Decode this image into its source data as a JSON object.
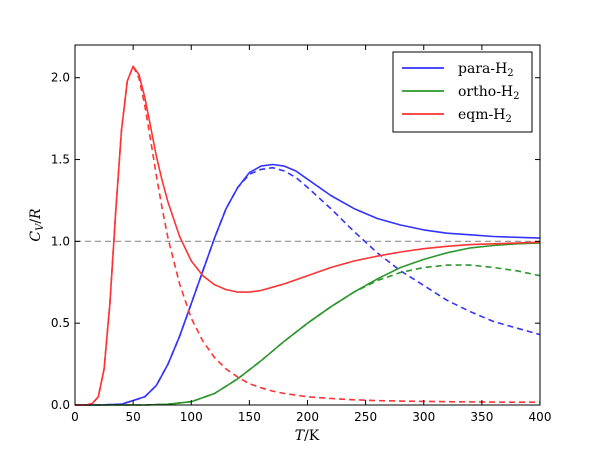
{
  "chart_data": {
    "type": "line",
    "xlabel": "T/K",
    "ylabel": "C_V/R",
    "xlim": [
      0,
      400
    ],
    "ylim": [
      0,
      2.2
    ],
    "xticks": [
      "0",
      "50",
      "100",
      "150",
      "200",
      "250",
      "300",
      "350",
      "400"
    ],
    "yticks": [
      "0.0",
      "0.5",
      "1.0",
      "1.5",
      "2.0"
    ],
    "grid": false,
    "legend": {
      "placement": "top-right",
      "entries": [
        {
          "label": "para-H",
          "sub": "2",
          "color": "#3333ff"
        },
        {
          "label": "ortho-H",
          "sub": "2",
          "color": "#2e962e"
        },
        {
          "label": "eqm-H",
          "sub": "2",
          "color": "#ff3333"
        }
      ]
    },
    "reference_line": {
      "y": 1.0,
      "style": "dashed",
      "color": "#999999"
    },
    "series": [
      {
        "name": "para-H2",
        "style": "solid",
        "color": "#3333ff",
        "x": [
          0,
          20,
          40,
          60,
          70,
          80,
          90,
          100,
          110,
          120,
          130,
          140,
          150,
          160,
          170,
          180,
          190,
          200,
          220,
          240,
          260,
          280,
          300,
          320,
          340,
          360,
          380,
          400
        ],
        "y": [
          0,
          0,
          0.005,
          0.05,
          0.12,
          0.25,
          0.42,
          0.62,
          0.82,
          1.02,
          1.2,
          1.33,
          1.42,
          1.46,
          1.47,
          1.46,
          1.43,
          1.38,
          1.28,
          1.2,
          1.14,
          1.1,
          1.07,
          1.05,
          1.04,
          1.03,
          1.025,
          1.02
        ]
      },
      {
        "name": "para-H2 (dashed)",
        "style": "dashed",
        "color": "#3333ff",
        "x": [
          0,
          20,
          40,
          60,
          70,
          80,
          90,
          100,
          110,
          120,
          130,
          140,
          150,
          160,
          170,
          180,
          190,
          200,
          220,
          240,
          260,
          280,
          300,
          320,
          340,
          360,
          380,
          400
        ],
        "y": [
          0,
          0,
          0.005,
          0.05,
          0.12,
          0.25,
          0.42,
          0.62,
          0.82,
          1.02,
          1.2,
          1.33,
          1.41,
          1.44,
          1.45,
          1.43,
          1.39,
          1.33,
          1.2,
          1.06,
          0.93,
          0.82,
          0.73,
          0.64,
          0.57,
          0.51,
          0.47,
          0.43
        ]
      },
      {
        "name": "ortho-H2",
        "style": "solid",
        "color": "#2e962e",
        "x": [
          0,
          60,
          80,
          100,
          120,
          140,
          160,
          180,
          200,
          220,
          240,
          260,
          280,
          300,
          320,
          340,
          360,
          380,
          400
        ],
        "y": [
          0,
          0,
          0.005,
          0.02,
          0.07,
          0.16,
          0.27,
          0.39,
          0.5,
          0.6,
          0.69,
          0.77,
          0.84,
          0.89,
          0.93,
          0.96,
          0.975,
          0.985,
          0.99
        ]
      },
      {
        "name": "ortho-H2 (dashed)",
        "style": "dashed",
        "color": "#2e962e",
        "x": [
          0,
          60,
          80,
          100,
          120,
          140,
          160,
          180,
          200,
          220,
          240,
          260,
          280,
          300,
          320,
          340,
          360,
          380,
          400
        ],
        "y": [
          0,
          0,
          0.005,
          0.02,
          0.07,
          0.16,
          0.27,
          0.39,
          0.5,
          0.6,
          0.69,
          0.76,
          0.81,
          0.84,
          0.855,
          0.855,
          0.84,
          0.82,
          0.79
        ]
      },
      {
        "name": "eqm-H2",
        "style": "solid",
        "color": "#ff3333",
        "x": [
          0,
          10,
          15,
          20,
          25,
          30,
          35,
          40,
          45,
          50,
          55,
          60,
          65,
          70,
          75,
          80,
          90,
          100,
          110,
          120,
          130,
          140,
          150,
          160,
          170,
          180,
          200,
          220,
          240,
          260,
          280,
          300,
          320,
          340,
          360,
          380,
          400
        ],
        "y": [
          0,
          0,
          0.01,
          0.05,
          0.22,
          0.62,
          1.18,
          1.68,
          1.98,
          2.07,
          2.02,
          1.88,
          1.7,
          1.52,
          1.37,
          1.24,
          1.03,
          0.88,
          0.79,
          0.735,
          0.705,
          0.69,
          0.69,
          0.7,
          0.72,
          0.74,
          0.79,
          0.84,
          0.88,
          0.91,
          0.935,
          0.955,
          0.97,
          0.98,
          0.985,
          0.99,
          0.995
        ]
      },
      {
        "name": "eqm-H2 (dashed)",
        "style": "dashed",
        "color": "#ff3333",
        "x": [
          0,
          10,
          15,
          20,
          25,
          30,
          35,
          40,
          45,
          50,
          55,
          60,
          65,
          70,
          75,
          80,
          90,
          100,
          110,
          120,
          130,
          140,
          150,
          160,
          170,
          180,
          200,
          220,
          240,
          260,
          280,
          300,
          320,
          340,
          360,
          380,
          400
        ],
        "y": [
          0,
          0,
          0.01,
          0.05,
          0.22,
          0.62,
          1.18,
          1.68,
          1.98,
          2.07,
          2.0,
          1.83,
          1.62,
          1.4,
          1.2,
          1.02,
          0.74,
          0.53,
          0.39,
          0.29,
          0.22,
          0.17,
          0.13,
          0.105,
          0.085,
          0.07,
          0.05,
          0.04,
          0.032,
          0.027,
          0.024,
          0.022,
          0.02,
          0.019,
          0.018,
          0.017,
          0.017
        ]
      }
    ]
  }
}
